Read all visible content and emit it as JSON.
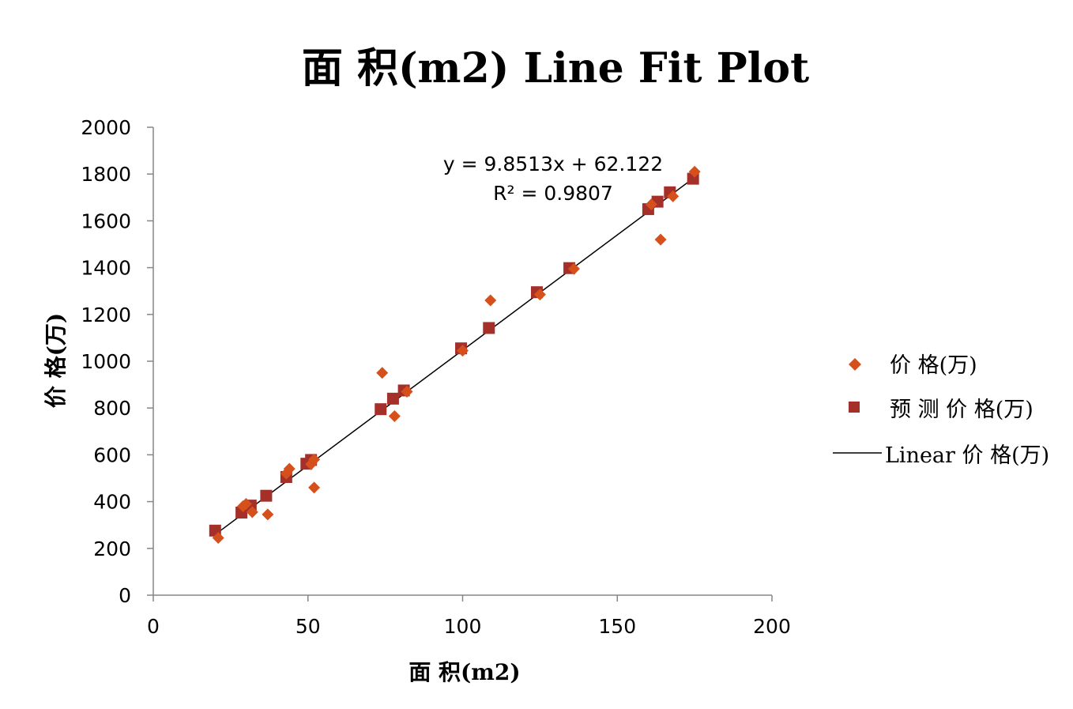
{
  "chart_data": {
    "type": "scatter",
    "title": "面 积(m2) Line Fit  Plot",
    "xlabel": "面 积(m2)",
    "ylabel": "价 格(万)",
    "xlim": [
      0,
      200
    ],
    "ylim": [
      0,
      2000
    ],
    "x_ticks": [
      "0",
      "50",
      "100",
      "150",
      "200"
    ],
    "y_ticks": [
      "0",
      "200",
      "400",
      "600",
      "800",
      "1000",
      "1200",
      "1400",
      "1600",
      "1800",
      "2000"
    ],
    "grid": false,
    "legend_position": "right",
    "colors": {
      "actual": "#D5501A",
      "predicted": "#A5302A",
      "trendline": "#000000",
      "axis": "#868686"
    },
    "series": [
      {
        "name": "价 格(万)",
        "marker": "diamond",
        "points": [
          [
            21,
            245
          ],
          [
            29,
            380
          ],
          [
            30,
            390
          ],
          [
            32,
            355
          ],
          [
            37,
            345
          ],
          [
            43,
            520
          ],
          [
            44,
            540
          ],
          [
            51,
            560
          ],
          [
            52,
            580
          ],
          [
            52,
            460
          ],
          [
            74,
            950
          ],
          [
            78,
            765
          ],
          [
            82,
            870
          ],
          [
            100,
            1045
          ],
          [
            109,
            1260
          ],
          [
            125,
            1285
          ],
          [
            136,
            1395
          ],
          [
            161,
            1670
          ],
          [
            164,
            1520
          ],
          [
            168,
            1705
          ],
          [
            175,
            1810
          ]
        ]
      },
      {
        "name": "预 测 价 格(万)",
        "marker": "square",
        "points": [
          [
            20,
            276
          ],
          [
            28.5,
            353
          ],
          [
            31.5,
            383
          ],
          [
            36.5,
            425
          ],
          [
            43,
            505
          ],
          [
            49.5,
            562
          ],
          [
            51,
            578
          ],
          [
            73.5,
            795
          ],
          [
            77.5,
            840
          ],
          [
            81,
            875
          ],
          [
            99.5,
            1055
          ],
          [
            108.5,
            1142
          ],
          [
            124,
            1295
          ],
          [
            134.5,
            1398
          ],
          [
            160,
            1650
          ],
          [
            163,
            1682
          ],
          [
            167,
            1722
          ],
          [
            174.5,
            1780
          ]
        ]
      }
    ],
    "trendline": {
      "name": "Linear  价 格(万)",
      "slope": 9.8513,
      "intercept": 62.122,
      "x_range": [
        20,
        175
      ],
      "equation": "y = 9.8513x + 62.122",
      "r_squared": "R² = 0.9807"
    }
  }
}
